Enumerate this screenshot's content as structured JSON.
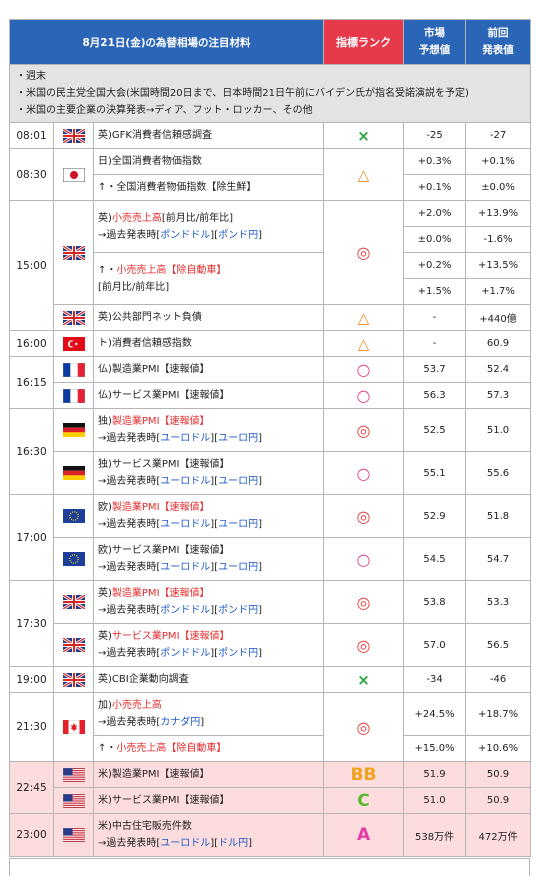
{
  "header": {
    "title": "8月21日(金)の為替相場の注目材料",
    "rank": "指標ランク",
    "expected": [
      "市場",
      "予想値"
    ],
    "previous": [
      "前回",
      "発表値"
    ]
  },
  "notes": [
    "・週末",
    "・米国の民主党全国大会(米国時間20日まで、日本時間21日午前にバイデン氏が指名受諾演説を予定)",
    "・米国の主要企業の決算発表→ディア、フット・ロッカー、その他"
  ],
  "colors": {
    "header_blue": "#2a65b8",
    "rank_red": "#e6394a",
    "link_blue": "#1c57c9",
    "highlight_pink": "#fcdcdc"
  },
  "rows": {
    "r0801": {
      "time": "08:01",
      "flag": "uk-flag-icon",
      "ind": "英)GFK消費者信頼感調査",
      "mark": "×",
      "exp": "-25",
      "prev": "-27"
    },
    "r0830": {
      "time": "08:30",
      "flag": "japan-flag-icon",
      "ind1": "日)全国消費者物価指数",
      "ind2": "↑・全国消費者物価指数【除生鮮】",
      "mark": "△",
      "exp1": "+0.3%",
      "prev1": "+0.1%",
      "exp2": "+0.1%",
      "prev2": "±0.0%"
    },
    "r1500": {
      "time": "15:00",
      "flag": "uk-flag-icon",
      "a_prefix": "英)",
      "a_red": "小売売上高",
      "a_rest": "[前月比/前年比]",
      "past": "→過去発表時[",
      "past_l1": "ポンドドル",
      "past_mid": "][",
      "past_l2": "ポンド円",
      "past_end": "]",
      "b_prefix": "↑・",
      "b_red": "小売売上高【除自動車】",
      "b_rest": "[前月比/前年比]",
      "mark": "◎",
      "vals": [
        [
          "+2.0%",
          "+13.9%"
        ],
        [
          "±0.0%",
          "-1.6%"
        ],
        [
          "+0.2%",
          "+13.5%"
        ],
        [
          "+1.5%",
          "+1.7%"
        ]
      ],
      "psnd_ind": "英)公共部門ネット負債",
      "psnd_mark": "△",
      "psnd_exp": "-",
      "psnd_prev": "+440億"
    },
    "r1600": {
      "time": "16:00",
      "flag": "turkey-flag-icon",
      "ind": "ト)消費者信頼感指数",
      "mark": "△",
      "exp": "-",
      "prev": "60.9"
    },
    "r1615": {
      "time": "16:15",
      "a_ind": "仏)製造業PMI【速報値】",
      "a_mark": "○",
      "a_exp": "53.7",
      "a_prev": "52.4",
      "b_ind": "仏)サービス業PMI【速報値】",
      "b_mark": "○",
      "b_exp": "56.3",
      "b_prev": "57.3"
    },
    "r1630": {
      "time": "16:30",
      "a_prefix": "独)",
      "a_red": "製造業PMI【速報値】",
      "a_mark": "◎",
      "a_exp": "52.5",
      "a_prev": "51.0",
      "b_ind": "独)サービス業PMI【速報値】",
      "b_mark": "○",
      "b_exp": "55.1",
      "b_prev": "55.6",
      "l1": "ユーロドル",
      "l2": "ユーロ円"
    },
    "r1700": {
      "time": "17:00",
      "a_prefix": "欧)",
      "a_red": "製造業PMI【速報値】",
      "a_mark": "◎",
      "a_exp": "52.9",
      "a_prev": "51.8",
      "b_ind": "欧)サービス業PMI【速報値】",
      "b_mark": "○",
      "b_exp": "54.5",
      "b_prev": "54.7",
      "l1": "ユーロドル",
      "l2": "ユーロ円"
    },
    "r1730": {
      "time": "17:30",
      "a_prefix": "英)",
      "a_red": "製造業PMI【速報値】",
      "a_mark": "◎",
      "a_exp": "53.8",
      "a_prev": "53.3",
      "b_prefix": "英)",
      "b_red": "サービス業PMI【速報値】",
      "b_mark": "◎",
      "b_exp": "57.0",
      "b_prev": "56.5",
      "l1": "ポンドドル",
      "l2": "ポンド円"
    },
    "r1900": {
      "time": "19:00",
      "ind": "英)CBI企業動向調査",
      "mark": "×",
      "exp": "-34",
      "prev": "-46"
    },
    "r2130": {
      "time": "21:30",
      "a_prefix": "加)",
      "a_red": "小売売上高",
      "l1": "カナダ円",
      "b_prefix": "↑・",
      "b_red": "小売売上高【除自動車】",
      "mark": "◎",
      "exp1": "+24.5%",
      "prev1": "+18.7%",
      "exp2": "+15.0%",
      "prev2": "+10.6%"
    },
    "r2245": {
      "time": "22:45",
      "a_ind": "米)製造業PMI【速報値】",
      "a_rank": "BB",
      "a_exp": "51.9",
      "a_prev": "50.9",
      "b_ind": "米)サービス業PMI【速報値】",
      "b_rank": "C",
      "b_exp": "51.0",
      "b_prev": "50.9"
    },
    "r2300": {
      "time": "23:00",
      "ind": "米)中古住宅販売件数",
      "l1": "ユーロドル",
      "l2": "ドル円",
      "rank": "A",
      "exp": "538万件",
      "prev": "472万件"
    }
  },
  "common": {
    "past_open": "→過去発表時[",
    "past_mid": "][",
    "past_close": "]"
  }
}
